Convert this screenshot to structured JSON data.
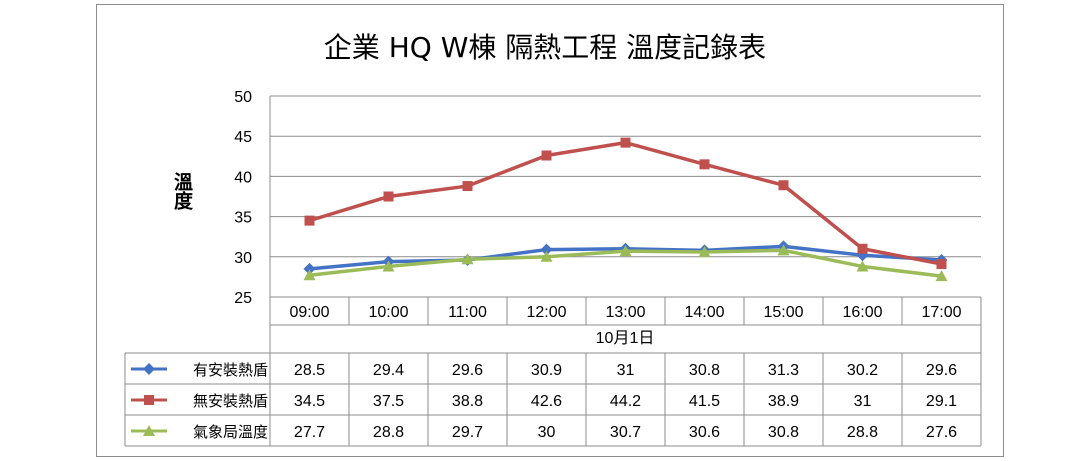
{
  "chart_data": {
    "type": "line",
    "title": "企業 HQ W棟 隔熱工程 溫度記錄表",
    "ylabel": "溫度",
    "xlabel": "10月1日",
    "categories": [
      "09:00",
      "10:00",
      "11:00",
      "12:00",
      "13:00",
      "14:00",
      "15:00",
      "16:00",
      "17:00"
    ],
    "ylim": [
      25,
      50
    ],
    "yticks": [
      "25",
      "30",
      "35",
      "40",
      "45",
      "50"
    ],
    "grid": true,
    "legend": "data table",
    "series": [
      {
        "name": "有安裝熱盾",
        "color": "#4472c4",
        "marker": "diamond",
        "values": [
          28.5,
          29.4,
          29.6,
          30.9,
          31,
          30.8,
          31.3,
          30.2,
          29.6
        ]
      },
      {
        "name": "無安裝熱盾",
        "color": "#c0504d",
        "marker": "square",
        "values": [
          34.5,
          37.5,
          38.8,
          42.6,
          44.2,
          41.5,
          38.9,
          31,
          29.1
        ]
      },
      {
        "name": "氣象局溫度",
        "color": "#9bbb59",
        "marker": "triangle",
        "values": [
          27.7,
          28.8,
          29.7,
          30,
          30.7,
          30.6,
          30.8,
          28.8,
          27.6
        ]
      }
    ]
  }
}
